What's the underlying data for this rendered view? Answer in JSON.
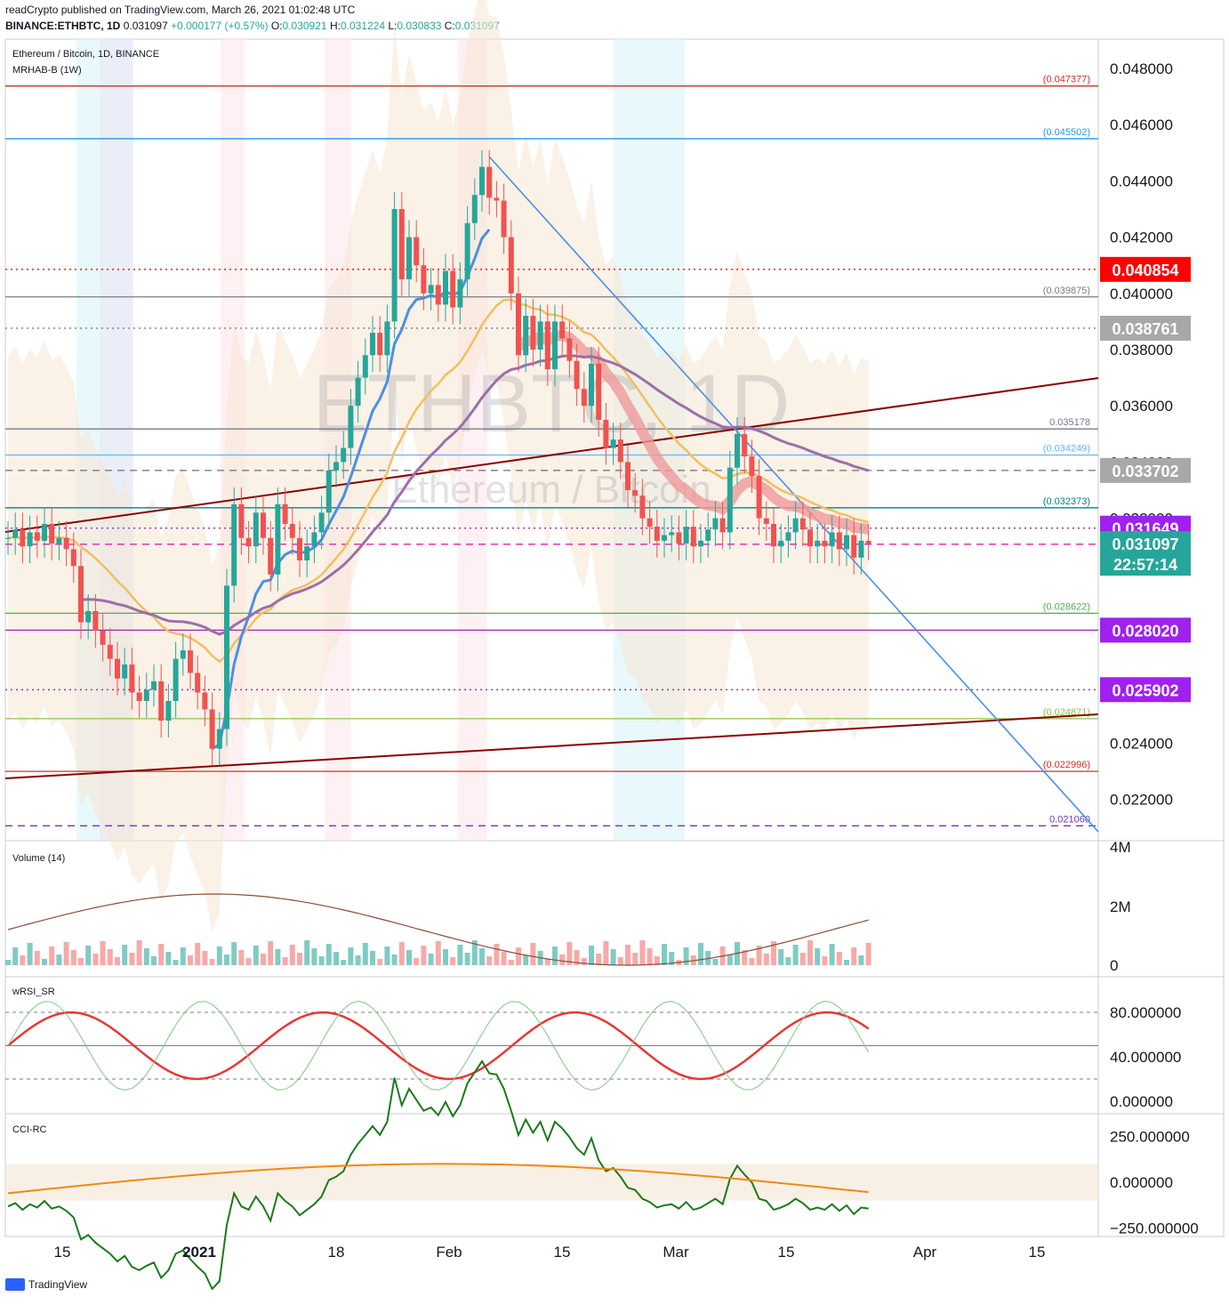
{
  "header": {
    "publisher": "readCrypto published on TradingView.com, March 26, 2021 01:02:48 UTC",
    "symbol": "BINANCE:ETHBTC, 1D",
    "last": "0.031097",
    "change": "+0.000177 (+0.57%)",
    "open": "0.030921",
    "high": "0.031224",
    "low": "0.030833",
    "close": "0.031097"
  },
  "main_pane": {
    "title": "Ethereum / Bitcoin, 1D, BINANCE",
    "indicator": "MRHAB-B (1W)",
    "watermark_big": "ETHBTC, 1D",
    "watermark_small": "Ethereum / Bitcoin"
  },
  "footer": {
    "brand": "TradingView"
  },
  "colors": {
    "up": "#26a69a",
    "down": "#ef5350",
    "blue_line": "#4a90e2",
    "dark_red": "#8b0000",
    "purple": "#9c27b0",
    "magenta": "#e91eb0"
  },
  "chart_data": [
    {
      "type": "candlestick",
      "pane": "price",
      "symbol": "ETHBTC",
      "interval": "1D",
      "ylim": [
        0.0208,
        0.0496
      ],
      "y_ticks": [
        "0.048000",
        "0.046000",
        "0.044000",
        "0.042000",
        "0.040000",
        "0.038000",
        "0.036000",
        "0.034000",
        "0.032000",
        "0.024000",
        "0.022000"
      ],
      "x_ticks": [
        "15",
        "2021",
        "18",
        "Feb",
        "15",
        "Mar",
        "15",
        "Apr",
        "15"
      ],
      "closes": [
        0.0313,
        0.0316,
        0.031,
        0.0315,
        0.0312,
        0.0318,
        0.0311,
        0.0313,
        0.0309,
        0.0303,
        0.0283,
        0.0287,
        0.028,
        0.0275,
        0.027,
        0.0263,
        0.0268,
        0.0258,
        0.0255,
        0.0259,
        0.0262,
        0.0248,
        0.0255,
        0.027,
        0.0273,
        0.0265,
        0.0258,
        0.0252,
        0.0238,
        0.0245,
        0.0296,
        0.0325,
        0.0313,
        0.031,
        0.0322,
        0.0313,
        0.03,
        0.0325,
        0.0318,
        0.0313,
        0.0305,
        0.031,
        0.0315,
        0.0322,
        0.0337,
        0.034,
        0.0345,
        0.036,
        0.037,
        0.0378,
        0.0386,
        0.0378,
        0.039,
        0.043,
        0.0405,
        0.042,
        0.041,
        0.04,
        0.0403,
        0.0396,
        0.0408,
        0.0395,
        0.0405,
        0.0425,
        0.0435,
        0.0445,
        0.0434,
        0.0433,
        0.042,
        0.04,
        0.0378,
        0.0392,
        0.038,
        0.039,
        0.0373,
        0.039,
        0.0384,
        0.0376,
        0.0366,
        0.036,
        0.0375,
        0.0355,
        0.0345,
        0.0348,
        0.034,
        0.033,
        0.0328,
        0.032,
        0.0317,
        0.0312,
        0.0314,
        0.0315,
        0.0311,
        0.0317,
        0.031,
        0.0312,
        0.0316,
        0.032,
        0.0315,
        0.0338,
        0.035,
        0.0342,
        0.0335,
        0.032,
        0.0318,
        0.031,
        0.0312,
        0.0315,
        0.032,
        0.0316,
        0.031,
        0.0312,
        0.031,
        0.0315,
        0.0309,
        0.0314,
        0.0306,
        0.0312,
        0.0311
      ],
      "series": [
        {
          "name": "MRHAB-B (1W)",
          "role": "indicator overlay"
        }
      ],
      "levels": [
        {
          "value": "(0.047377)",
          "color": "#d32f2f",
          "style": "solid"
        },
        {
          "value": "(0.045502)",
          "color": "#2196f3",
          "style": "solid"
        },
        {
          "value": "0.040854",
          "color": "#ff0000",
          "style": "dotted",
          "tag": true
        },
        {
          "value": "(0.039875)",
          "color": "#787b86",
          "style": "solid"
        },
        {
          "value": "0.038761",
          "color": "#787b86",
          "style": "dotted",
          "tag": true
        },
        {
          "value": "0.035178",
          "color": "#787b86",
          "style": "solid"
        },
        {
          "value": "(0.034249)",
          "color": "#64b5f6",
          "style": "solid"
        },
        {
          "value": "0.033702",
          "color": "#787b86",
          "style": "dashed",
          "tag": true
        },
        {
          "value": "(0.032373)",
          "color": "#00897b",
          "style": "solid"
        },
        {
          "value": "0.031649",
          "color": "#9c27b0",
          "style": "dotted",
          "tag": true
        },
        {
          "value": "0.031076",
          "color": "#e91eb0",
          "style": "dashed",
          "tag": true
        },
        {
          "value": "(0.028622)",
          "color": "#4caf50",
          "style": "solid"
        },
        {
          "value": "0.028020",
          "color": "#9c27b0",
          "style": "solid",
          "tag": true
        },
        {
          "value": "0.025902",
          "color": "#9c27b0",
          "style": "dotted",
          "tag": true
        },
        {
          "value": "(0.024871)",
          "color": "#8bc34a",
          "style": "solid"
        },
        {
          "value": "(0.022996)",
          "color": "#d32f2f",
          "style": "solid"
        },
        {
          "value": "0.021060",
          "color": "#673ab7",
          "style": "dashed"
        }
      ],
      "last_price_tag": {
        "price": "0.031097",
        "countdown": "22:57:14"
      }
    },
    {
      "type": "area",
      "pane": "volume",
      "title": "Volume (14)",
      "y_ticks": [
        "4M",
        "2M",
        "0"
      ]
    },
    {
      "type": "line",
      "pane": "oscillator",
      "title": "wRSI_SR",
      "y_ticks": [
        "80.000000",
        "40.000000",
        "0.000000"
      ],
      "ylim": [
        0,
        100
      ]
    },
    {
      "type": "line",
      "pane": "oscillator",
      "title": "CCI-RC",
      "y_ticks": [
        "250.000000",
        "0.000000",
        "−250.000000"
      ],
      "ylim": [
        -250,
        250
      ]
    }
  ]
}
